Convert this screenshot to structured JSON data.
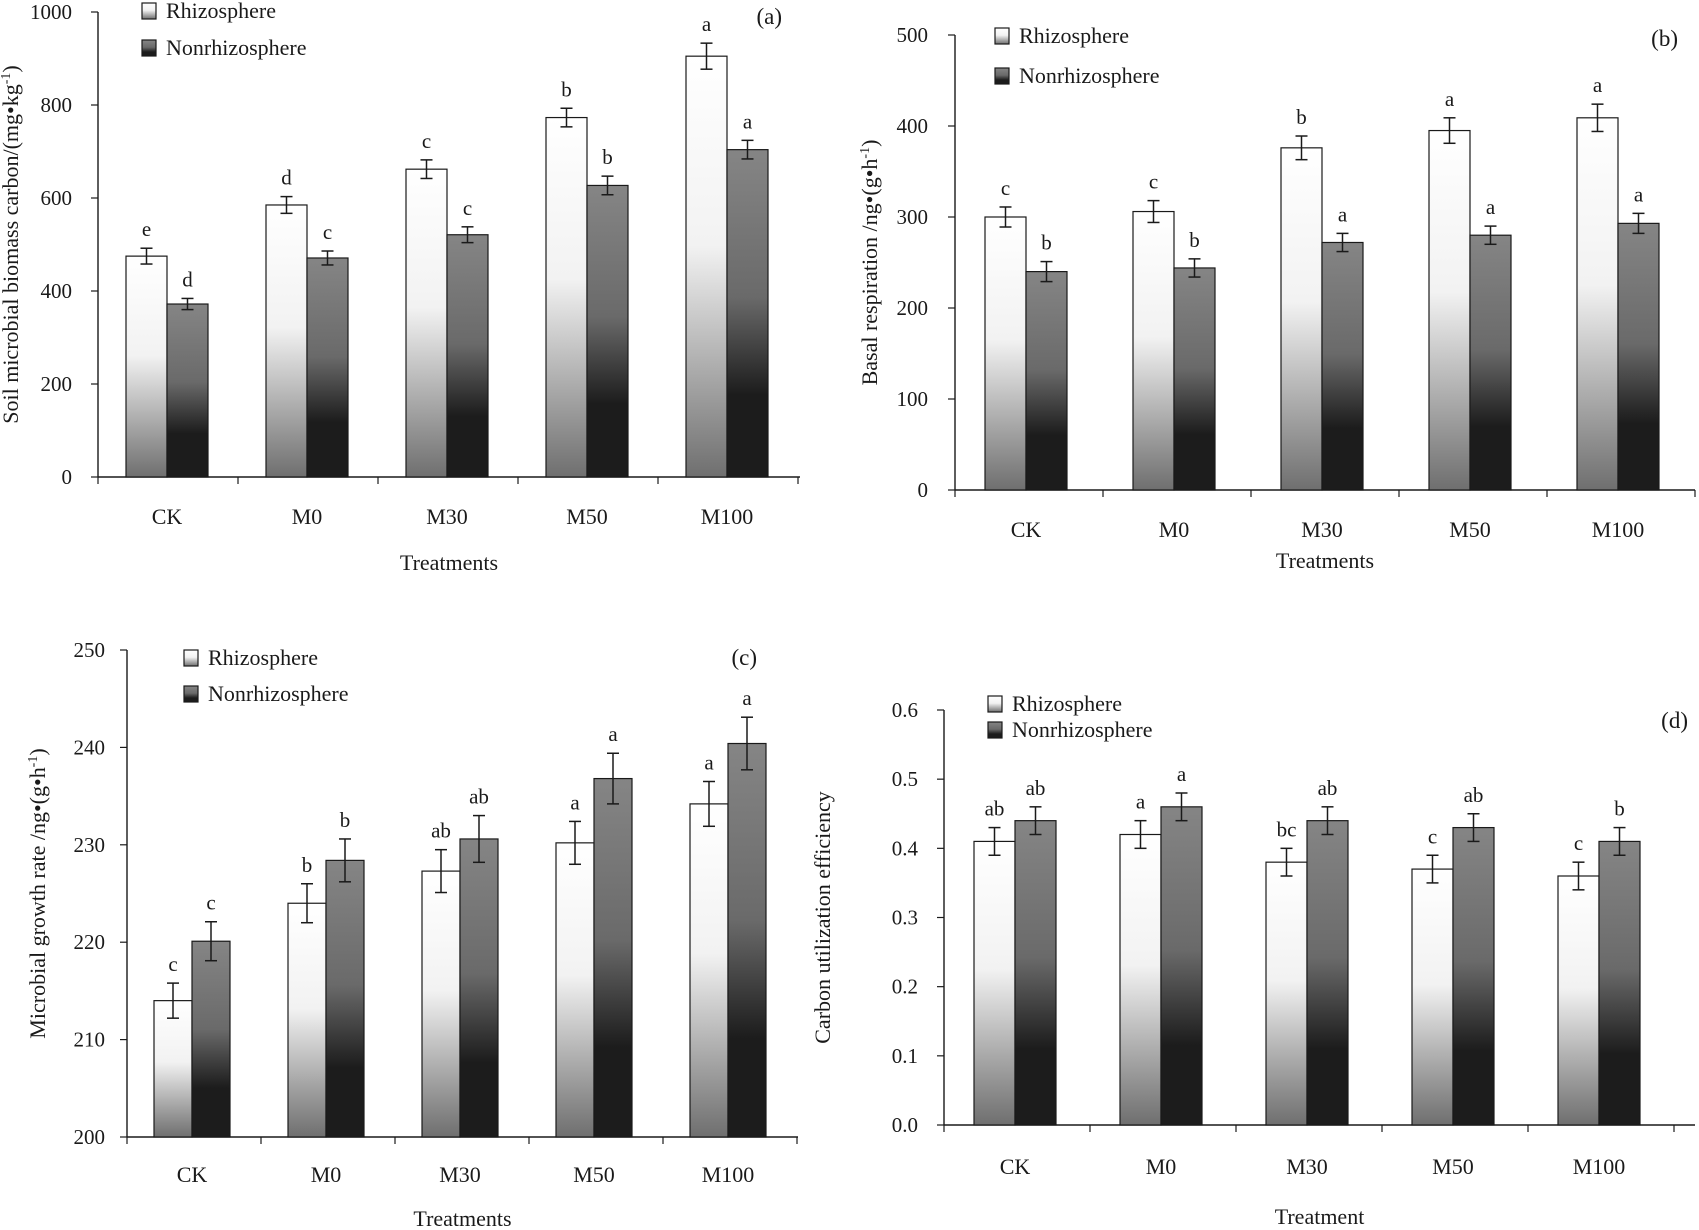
{
  "figure": {
    "panels": 4,
    "series_names": [
      "Rhizosphere",
      "Nonrhizosphere"
    ],
    "colors": {
      "rhizo_top": "#ffffff",
      "rhizo_bottom": "#6f6f6f",
      "nonrhizo_top": "#858585",
      "nonrhizo_bottom": "#1c1c1c",
      "axis": "#1a1a1a",
      "bar_stroke": "#1a1a1a"
    }
  },
  "chart_data": [
    {
      "panel_label": "(a)",
      "type": "bar",
      "title": "",
      "categories": [
        "CK",
        "M0",
        "M30",
        "M50",
        "M100"
      ],
      "xlabel": "Treatments",
      "ylabel_main": "Soil microbial biomass carbon/(mg•kg",
      "ylabel_sup": "-1",
      "ylabel_end": ")",
      "ylim": [
        0,
        1000
      ],
      "yticks": [
        "0",
        "200",
        "400",
        "600",
        "800",
        "1000"
      ],
      "legend_position": "top-left",
      "series": [
        {
          "name": "Rhizosphere",
          "values": [
            475,
            585,
            662,
            773,
            905
          ],
          "errors": [
            17,
            18,
            20,
            20,
            28
          ],
          "letters": [
            "e",
            "d",
            "c",
            "b",
            "a"
          ]
        },
        {
          "name": "Nonrhizosphere",
          "values": [
            372,
            471,
            521,
            627,
            704
          ],
          "errors": [
            12,
            15,
            17,
            20,
            20
          ],
          "letters": [
            "d",
            "c",
            "c",
            "b",
            "a"
          ]
        }
      ]
    },
    {
      "panel_label": "(b)",
      "type": "bar",
      "title": "",
      "categories": [
        "CK",
        "M0",
        "M30",
        "M50",
        "M100"
      ],
      "xlabel": "Treatments",
      "ylabel_main": "Basal respiration /ng•(g•h",
      "ylabel_sup": "-1",
      "ylabel_end": ")",
      "ylim": [
        0,
        500
      ],
      "yticks": [
        "0",
        "100",
        "200",
        "300",
        "400",
        "500"
      ],
      "legend_position": "top-left",
      "series": [
        {
          "name": "Rhizosphere",
          "values": [
            300,
            306,
            376,
            395,
            409
          ],
          "errors": [
            11,
            12,
            13,
            14,
            15
          ],
          "letters": [
            "c",
            "c",
            "b",
            "a",
            "a"
          ]
        },
        {
          "name": "Nonrhizosphere",
          "values": [
            240,
            244,
            272,
            280,
            293
          ],
          "errors": [
            11,
            10,
            10,
            10,
            11
          ],
          "letters": [
            "b",
            "b",
            "a",
            "a",
            "a"
          ]
        }
      ]
    },
    {
      "panel_label": "(c)",
      "type": "bar",
      "title": "",
      "categories": [
        "CK",
        "M0",
        "M30",
        "M50",
        "M100"
      ],
      "xlabel": "Treatments",
      "ylabel_main": "Microbial growth rate /ng•(g•h",
      "ylabel_sup": "-1",
      "ylabel_end": ")",
      "ylim": [
        200,
        250
      ],
      "yticks": [
        "200",
        "210",
        "220",
        "230",
        "240",
        "250"
      ],
      "legend_position": "top-left",
      "series": [
        {
          "name": "Rhizosphere",
          "values": [
            214,
            224,
            227.3,
            230.2,
            234.2
          ],
          "errors": [
            1.8,
            2.0,
            2.2,
            2.2,
            2.3
          ],
          "letters": [
            "c",
            "b",
            "ab",
            "a",
            "a"
          ]
        },
        {
          "name": "Nonrhizosphere",
          "values": [
            220.1,
            228.4,
            230.6,
            236.8,
            240.4
          ],
          "errors": [
            2.0,
            2.2,
            2.4,
            2.6,
            2.7
          ],
          "letters": [
            "c",
            "b",
            "ab",
            "a",
            "a"
          ]
        }
      ]
    },
    {
      "panel_label": "(d)",
      "type": "bar",
      "title": "",
      "categories": [
        "CK",
        "M0",
        "M30",
        "M50",
        "M100"
      ],
      "xlabel": "Treatment",
      "ylabel_main": "Carbon utilization efficiency",
      "ylabel_sup": "",
      "ylabel_end": "",
      "ylim": [
        0,
        0.6
      ],
      "yticks": [
        "0.0",
        "0.1",
        "0.2",
        "0.3",
        "0.4",
        "0.5",
        "0.6"
      ],
      "legend_position": "top-left",
      "series": [
        {
          "name": "Rhizosphere",
          "values": [
            0.41,
            0.42,
            0.38,
            0.37,
            0.36
          ],
          "errors": [
            0.02,
            0.02,
            0.02,
            0.02,
            0.02
          ],
          "letters": [
            "ab",
            "a",
            "bc",
            "c",
            "c"
          ]
        },
        {
          "name": "Nonrhizosphere",
          "values": [
            0.44,
            0.46,
            0.44,
            0.43,
            0.41
          ],
          "errors": [
            0.02,
            0.02,
            0.02,
            0.02,
            0.02
          ],
          "letters": [
            "ab",
            "a",
            "ab",
            "ab",
            "b"
          ]
        }
      ]
    }
  ]
}
